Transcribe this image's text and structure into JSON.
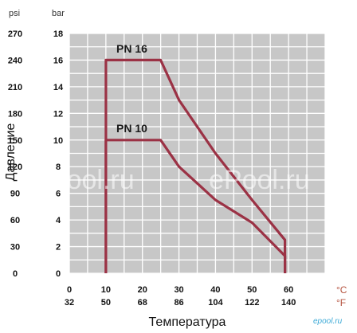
{
  "chart_data": {
    "type": "line",
    "xlabel": "Температура",
    "ylabel": "Давление",
    "units": {
      "psi": "psi",
      "bar": "bar",
      "celsius": "°C",
      "fahrenheit": "°F"
    },
    "x_ticks_c": [
      "0",
      "10",
      "20",
      "30",
      "40",
      "50",
      "60"
    ],
    "x_ticks_f": [
      "32",
      "50",
      "68",
      "86",
      "104",
      "122",
      "140"
    ],
    "y_ticks_bar": [
      "0",
      "2",
      "4",
      "6",
      "8",
      "10",
      "12",
      "14",
      "16",
      "18"
    ],
    "y_ticks_psi": [
      "0",
      "30",
      "60",
      "90",
      "120",
      "150",
      "180",
      "210",
      "240",
      "270"
    ],
    "xlim": [
      0,
      70
    ],
    "ylim": [
      0,
      18
    ],
    "grid": true,
    "series": [
      {
        "name": "PN 16",
        "x": [
          10,
          10,
          25,
          30,
          40,
          50,
          59,
          59
        ],
        "y": [
          0,
          16,
          16,
          13,
          9,
          5.5,
          2.5,
          0
        ]
      },
      {
        "name": "PN 10",
        "x": [
          10,
          10,
          25,
          30,
          40,
          50,
          59,
          59
        ],
        "y": [
          0,
          10,
          10,
          8,
          5.5,
          3.8,
          1.3,
          0
        ]
      }
    ],
    "colors": {
      "line": "#9b3245",
      "plot_bg": "#c7c7c7",
      "grid": "#ffffff"
    }
  },
  "watermarks": [
    "ePool.ru",
    "ePool.ru"
  ],
  "brand": "epool.ru"
}
